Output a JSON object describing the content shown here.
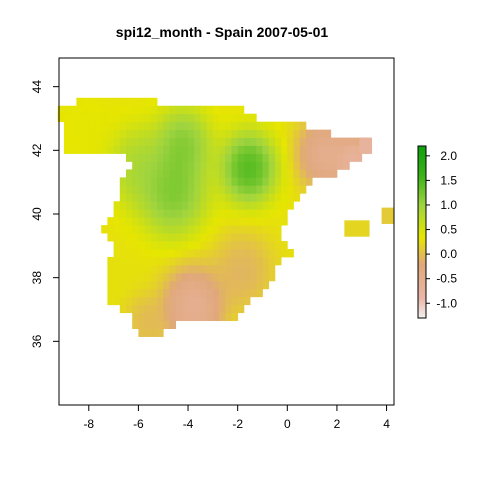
{
  "chart_data": {
    "type": "heatmap",
    "title": "spi12_month - Spain 2007-05-01",
    "xlabel": "",
    "ylabel": "",
    "xlim": [
      -9.2,
      4.3
    ],
    "ylim": [
      34.0,
      44.9
    ],
    "x_ticks": [
      -8,
      -6,
      -4,
      -2,
      0,
      2,
      4
    ],
    "y_ticks": [
      36,
      38,
      40,
      42,
      44
    ],
    "grid": false,
    "legend": {
      "placement": "right",
      "range": [
        -1.3,
        2.2
      ],
      "ticks": [
        2.0,
        1.5,
        1.0,
        0.5,
        0.0,
        -0.5,
        -1.0
      ],
      "tick_labels": [
        "2.0",
        "1.5",
        "1.0",
        "0.5",
        "0.0",
        "-0.5",
        "-1.0"
      ]
    },
    "colors": {
      "low": "#f2f2f2",
      "pink": "#ebb7aa",
      "tan": "#e0a87a",
      "yellow": "#e6e600",
      "lightgreen": "#9fd43f",
      "green": "#3cb317",
      "darkgreen": "#10a010"
    },
    "cell_size_deg": 0.25,
    "field_centers": [
      {
        "lon": -1.55,
        "lat": 41.45,
        "value": 2.1,
        "spread": 0.9
      },
      {
        "lon": -4.6,
        "lat": 40.7,
        "value": 1.7,
        "spread": 1.1
      },
      {
        "lon": -4.2,
        "lat": 42.2,
        "value": 1.6,
        "spread": 0.9
      },
      {
        "lon": -6.0,
        "lat": 41.5,
        "value": 1.2,
        "spread": 1.0
      },
      {
        "lon": 1.5,
        "lat": 41.9,
        "value": -0.9,
        "spread": 0.9
      },
      {
        "lon": 2.7,
        "lat": 41.7,
        "value": -1.2,
        "spread": 0.6
      },
      {
        "lon": -3.8,
        "lat": 37.1,
        "value": -1.0,
        "spread": 1.0
      },
      {
        "lon": -5.7,
        "lat": 36.6,
        "value": -0.2,
        "spread": 0.7
      },
      {
        "lon": -1.8,
        "lat": 38.2,
        "value": -0.3,
        "spread": 1.0
      },
      {
        "lon": -8.2,
        "lat": 42.7,
        "value": 0.4,
        "spread": 1.0
      }
    ],
    "base_value": 0.3,
    "islands": [
      {
        "lon_min": 2.3,
        "lon_max": 3.3,
        "lat_min": 39.3,
        "lat_max": 39.8,
        "value": 0.2
      },
      {
        "lon_min": 3.8,
        "lon_max": 4.3,
        "lat_min": 39.7,
        "lat_max": 40.0,
        "value": 0.1
      },
      {
        "lon_min": 2.9,
        "lon_max": 3.3,
        "lat_min": 41.9,
        "lat_max": 42.4,
        "value": -0.7
      }
    ]
  }
}
